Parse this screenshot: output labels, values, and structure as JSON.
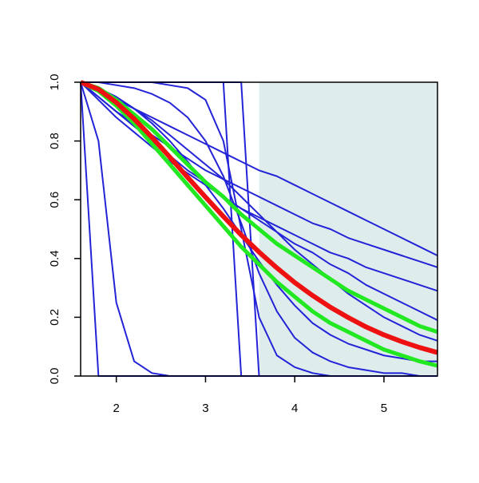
{
  "chart_data": {
    "type": "line",
    "x": [
      1.6,
      1.8,
      2.0,
      2.2,
      2.4,
      2.6,
      2.8,
      3.0,
      3.2,
      3.4,
      3.6,
      3.8,
      4.0,
      4.2,
      4.4,
      4.6,
      4.8,
      5.0,
      5.2,
      5.4,
      5.6
    ],
    "xlim": [
      1.6,
      5.6
    ],
    "ylim": [
      0,
      1
    ],
    "xticks": [
      2,
      3,
      4,
      5
    ],
    "yticks": [
      {
        "value": 0,
        "label": "0.0"
      },
      0.2,
      0.4,
      0.6,
      0.8,
      {
        "value": 1,
        "label": "1.0"
      }
    ],
    "shaded_region": {
      "x": [
        3.6,
        5.6
      ],
      "color": "#deecec"
    },
    "series": [
      {
        "color": "#2323d8",
        "line_width": 2,
        "values": [
          1,
          0.97,
          0.94,
          0.91,
          0.88,
          0.85,
          0.82,
          0.79,
          0.76,
          0.73,
          0.7,
          0.68,
          0.65,
          0.62,
          0.59,
          0.56,
          0.53,
          0.5,
          0.47,
          0.44,
          0.41
        ]
      },
      {
        "color": "#2323d8",
        "line_width": 2,
        "values": [
          1,
          0.95,
          0.9,
          0.86,
          0.82,
          0.78,
          0.74,
          0.7,
          0.67,
          0.64,
          0.61,
          0.58,
          0.55,
          0.52,
          0.5,
          0.47,
          0.45,
          0.43,
          0.41,
          0.39,
          0.37
        ]
      },
      {
        "color": "#2323d8",
        "line_width": 2,
        "values": [
          1,
          0.94,
          0.88,
          0.83,
          0.78,
          0.73,
          0.69,
          0.65,
          0.61,
          0.57,
          0.54,
          0.51,
          0.48,
          0.45,
          0.42,
          0.4,
          0.37,
          0.35,
          0.33,
          0.31,
          0.29
        ]
      },
      {
        "color": "#2323d8",
        "line_width": 2,
        "values": [
          1,
          0.95,
          0.9,
          0.85,
          0.8,
          0.75,
          0.7,
          0.66,
          0.61,
          0.57,
          0.53,
          0.49,
          0.45,
          0.42,
          0.38,
          0.35,
          0.31,
          0.28,
          0.25,
          0.22,
          0.19
        ]
      },
      {
        "color": "#2323d8",
        "line_width": 2,
        "values": [
          1,
          0.98,
          0.95,
          0.91,
          0.87,
          0.82,
          0.77,
          0.72,
          0.67,
          0.61,
          0.55,
          0.49,
          0.43,
          0.38,
          0.33,
          0.28,
          0.24,
          0.2,
          0.17,
          0.14,
          0.12
        ]
      },
      {
        "color": "#2323d8",
        "line_width": 2,
        "values": [
          1,
          1,
          1,
          1,
          1,
          0.99,
          0.98,
          0.94,
          0.8,
          0.5,
          0.2,
          0.07,
          0.03,
          0.01,
          0,
          0,
          0,
          0,
          0,
          0,
          0
        ]
      },
      {
        "color": "#2323d8",
        "line_width": 2,
        "values": [
          1,
          1,
          0.99,
          0.98,
          0.96,
          0.93,
          0.88,
          0.8,
          0.68,
          0.52,
          0.35,
          0.22,
          0.13,
          0.08,
          0.05,
          0.03,
          0.02,
          0.01,
          0.01,
          0,
          0
        ]
      },
      {
        "color": "#2323d8",
        "line_width": 2,
        "values": [
          1,
          0.98,
          0.95,
          0.91,
          0.86,
          0.8,
          0.73,
          0.65,
          0.57,
          0.48,
          0.39,
          0.31,
          0.24,
          0.18,
          0.14,
          0.11,
          0.09,
          0.07,
          0.06,
          0.05,
          0.05
        ]
      },
      {
        "color": "#2323d8",
        "line_width": 2,
        "values": [
          1,
          0.8,
          0.25,
          0.05,
          0.01,
          0,
          0,
          0,
          0,
          0,
          0,
          0,
          0,
          0,
          0,
          0,
          0,
          0,
          0,
          0,
          0
        ]
      },
      {
        "color": "#2323d8",
        "line_width": 2,
        "values": [
          1,
          0,
          0,
          0,
          0,
          0,
          0,
          0,
          0,
          0,
          0,
          0,
          0,
          0,
          0,
          0,
          0,
          0,
          0,
          0,
          0
        ]
      },
      {
        "color": "#2323d8",
        "line_width": 2,
        "values": [
          1,
          1,
          1,
          1,
          1,
          1,
          1,
          1,
          1,
          0,
          0,
          0,
          0,
          0,
          0,
          0,
          0,
          0,
          0,
          0,
          0
        ]
      },
      {
        "color": "#2323d8",
        "line_width": 2,
        "values": [
          1,
          1,
          1,
          1,
          1,
          1,
          1,
          1,
          1,
          1,
          0,
          0,
          0,
          0,
          0,
          0,
          0,
          0,
          0,
          0,
          0
        ]
      },
      {
        "color": "#22e822",
        "line_width": 5,
        "values": [
          1,
          0.98,
          0.94,
          0.89,
          0.84,
          0.78,
          0.72,
          0.66,
          0.61,
          0.55,
          0.5,
          0.45,
          0.41,
          0.37,
          0.33,
          0.29,
          0.26,
          0.23,
          0.2,
          0.17,
          0.15
        ]
      },
      {
        "color": "#22e822",
        "line_width": 5,
        "values": [
          1,
          0.97,
          0.92,
          0.86,
          0.79,
          0.72,
          0.65,
          0.58,
          0.51,
          0.44,
          0.38,
          0.32,
          0.27,
          0.22,
          0.18,
          0.15,
          0.12,
          0.09,
          0.07,
          0.05,
          0.035
        ]
      },
      {
        "color": "#ee1111",
        "line_width": 6,
        "values": [
          1,
          0.976,
          0.931,
          0.875,
          0.812,
          0.745,
          0.676,
          0.609,
          0.543,
          0.48,
          0.422,
          0.368,
          0.318,
          0.274,
          0.234,
          0.199,
          0.167,
          0.14,
          0.117,
          0.097,
          0.08
        ]
      }
    ]
  }
}
